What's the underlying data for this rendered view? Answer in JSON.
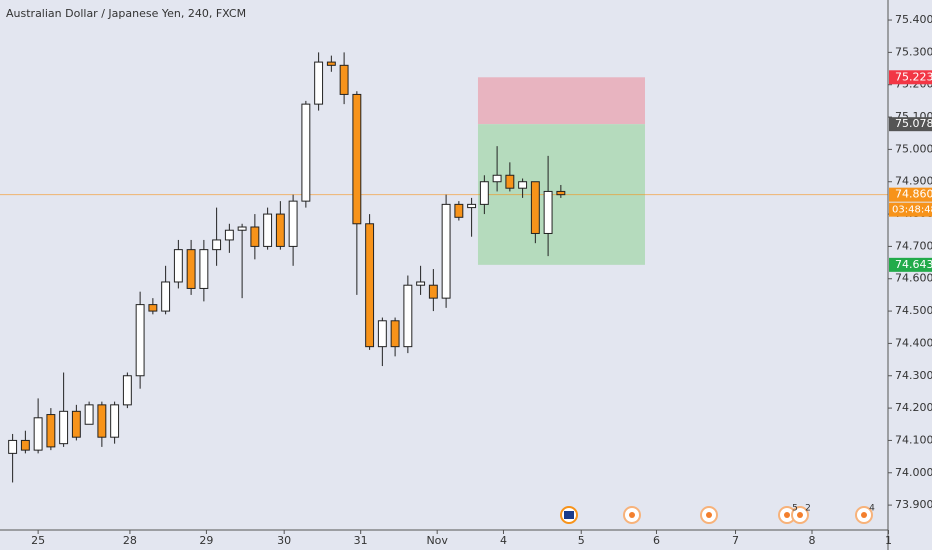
{
  "chart_data": {
    "type": "candlestick",
    "title": "Australian Dollar / Japanese Yen, 240, FXCM",
    "up_color": "#ffffff",
    "down_color": "#f7931a",
    "border_color": "#222222",
    "open": [
      74.06,
      74.1,
      74.07,
      74.18,
      74.09,
      74.19,
      74.15,
      74.21,
      74.11,
      74.21,
      74.3,
      74.52,
      74.5,
      74.59,
      74.69,
      74.57,
      74.69,
      74.72,
      74.75,
      74.76,
      74.7,
      74.8,
      74.7,
      74.84,
      75.14,
      75.27,
      75.26,
      75.17,
      74.77,
      74.39,
      74.47,
      74.39,
      74.58,
      74.58,
      74.54,
      74.83,
      74.82,
      74.83,
      74.9,
      74.92,
      74.88,
      74.9,
      74.74,
      74.87
    ],
    "high": [
      74.12,
      74.13,
      74.23,
      74.2,
      74.31,
      74.21,
      74.22,
      74.22,
      74.22,
      74.31,
      74.56,
      74.54,
      74.64,
      74.72,
      74.72,
      74.72,
      74.82,
      74.77,
      74.77,
      74.8,
      74.82,
      74.84,
      74.86,
      75.15,
      75.3,
      75.29,
      75.3,
      75.18,
      74.8,
      74.48,
      74.48,
      74.61,
      74.64,
      74.63,
      74.86,
      74.84,
      74.85,
      74.92,
      75.01,
      74.96,
      74.91,
      74.9,
      74.98,
      74.89
    ],
    "low": [
      73.97,
      74.06,
      74.06,
      74.07,
      74.08,
      74.1,
      74.15,
      74.08,
      74.09,
      74.2,
      74.26,
      74.49,
      74.49,
      74.57,
      74.55,
      74.53,
      74.64,
      74.68,
      74.54,
      74.66,
      74.69,
      74.69,
      74.64,
      74.82,
      75.12,
      75.24,
      75.14,
      74.55,
      74.38,
      74.33,
      74.36,
      74.37,
      74.55,
      74.5,
      74.51,
      74.78,
      74.73,
      74.8,
      74.87,
      74.87,
      74.85,
      74.71,
      74.67,
      74.85
    ],
    "close": [
      74.1,
      74.07,
      74.17,
      74.08,
      74.19,
      74.11,
      74.21,
      74.11,
      74.21,
      74.3,
      74.52,
      74.5,
      74.59,
      74.69,
      74.57,
      74.69,
      74.72,
      74.75,
      74.76,
      74.7,
      74.8,
      74.7,
      74.84,
      75.14,
      75.27,
      75.26,
      75.17,
      74.77,
      74.39,
      74.47,
      74.39,
      74.58,
      74.59,
      74.54,
      74.83,
      74.79,
      74.83,
      74.9,
      74.92,
      74.88,
      74.9,
      74.74,
      74.87,
      74.86
    ],
    "xlim": [
      -0.99,
      68.66
    ],
    "xticks": [
      {
        "value": 2.0,
        "label": "25"
      },
      {
        "value": 9.2,
        "label": "28"
      },
      {
        "value": 15.2,
        "label": "29"
      },
      {
        "value": 21.3,
        "label": "30"
      },
      {
        "value": 27.3,
        "label": "31"
      },
      {
        "value": 33.3,
        "label": "Nov"
      },
      {
        "value": 38.5,
        "label": "4"
      },
      {
        "value": 44.6,
        "label": "5"
      },
      {
        "value": 50.5,
        "label": "6"
      },
      {
        "value": 56.7,
        "label": "7"
      },
      {
        "value": 62.7,
        "label": "8"
      },
      {
        "value": 68.7,
        "label": "1"
      }
    ],
    "ylim": [
      73.823,
      75.462
    ],
    "yticks": [
      {
        "value": 73.9,
        "label": "73.900"
      },
      {
        "value": 74.0,
        "label": "74.000"
      },
      {
        "value": 74.1,
        "label": "74.100"
      },
      {
        "value": 74.2,
        "label": "74.200"
      },
      {
        "value": 74.3,
        "label": "74.300"
      },
      {
        "value": 74.4,
        "label": "74.400"
      },
      {
        "value": 74.5,
        "label": "74.500"
      },
      {
        "value": 74.6,
        "label": "74.600"
      },
      {
        "value": 74.7,
        "label": "74.700"
      },
      {
        "value": 74.8,
        "label": "74.800"
      },
      {
        "value": 74.9,
        "label": "74.900"
      },
      {
        "value": 75.0,
        "label": "75.000"
      },
      {
        "value": 75.1,
        "label": "75.100"
      },
      {
        "value": 75.2,
        "label": "75.200"
      },
      {
        "value": 75.3,
        "label": "75.300"
      },
      {
        "value": 75.4,
        "label": "75.400"
      }
    ],
    "position": {
      "xrange": [
        36.5,
        49.6
      ],
      "stop": {
        "value": 75.223,
        "label": "75.223",
        "color": "#f23645",
        "zone_color": "#e8b4c0"
      },
      "entry": {
        "value": 75.078,
        "label": "75.078",
        "color": "#555555"
      },
      "target": {
        "value": 74.643,
        "label": "74.643",
        "color": "#22ab4a",
        "zone_color": "#b5dbbd"
      }
    },
    "last_price": {
      "value": 74.86,
      "label": "74.860",
      "color": "#f7931a",
      "countdown": "03:48:48"
    },
    "event_badges": [
      "5",
      "2",
      "4"
    ]
  }
}
